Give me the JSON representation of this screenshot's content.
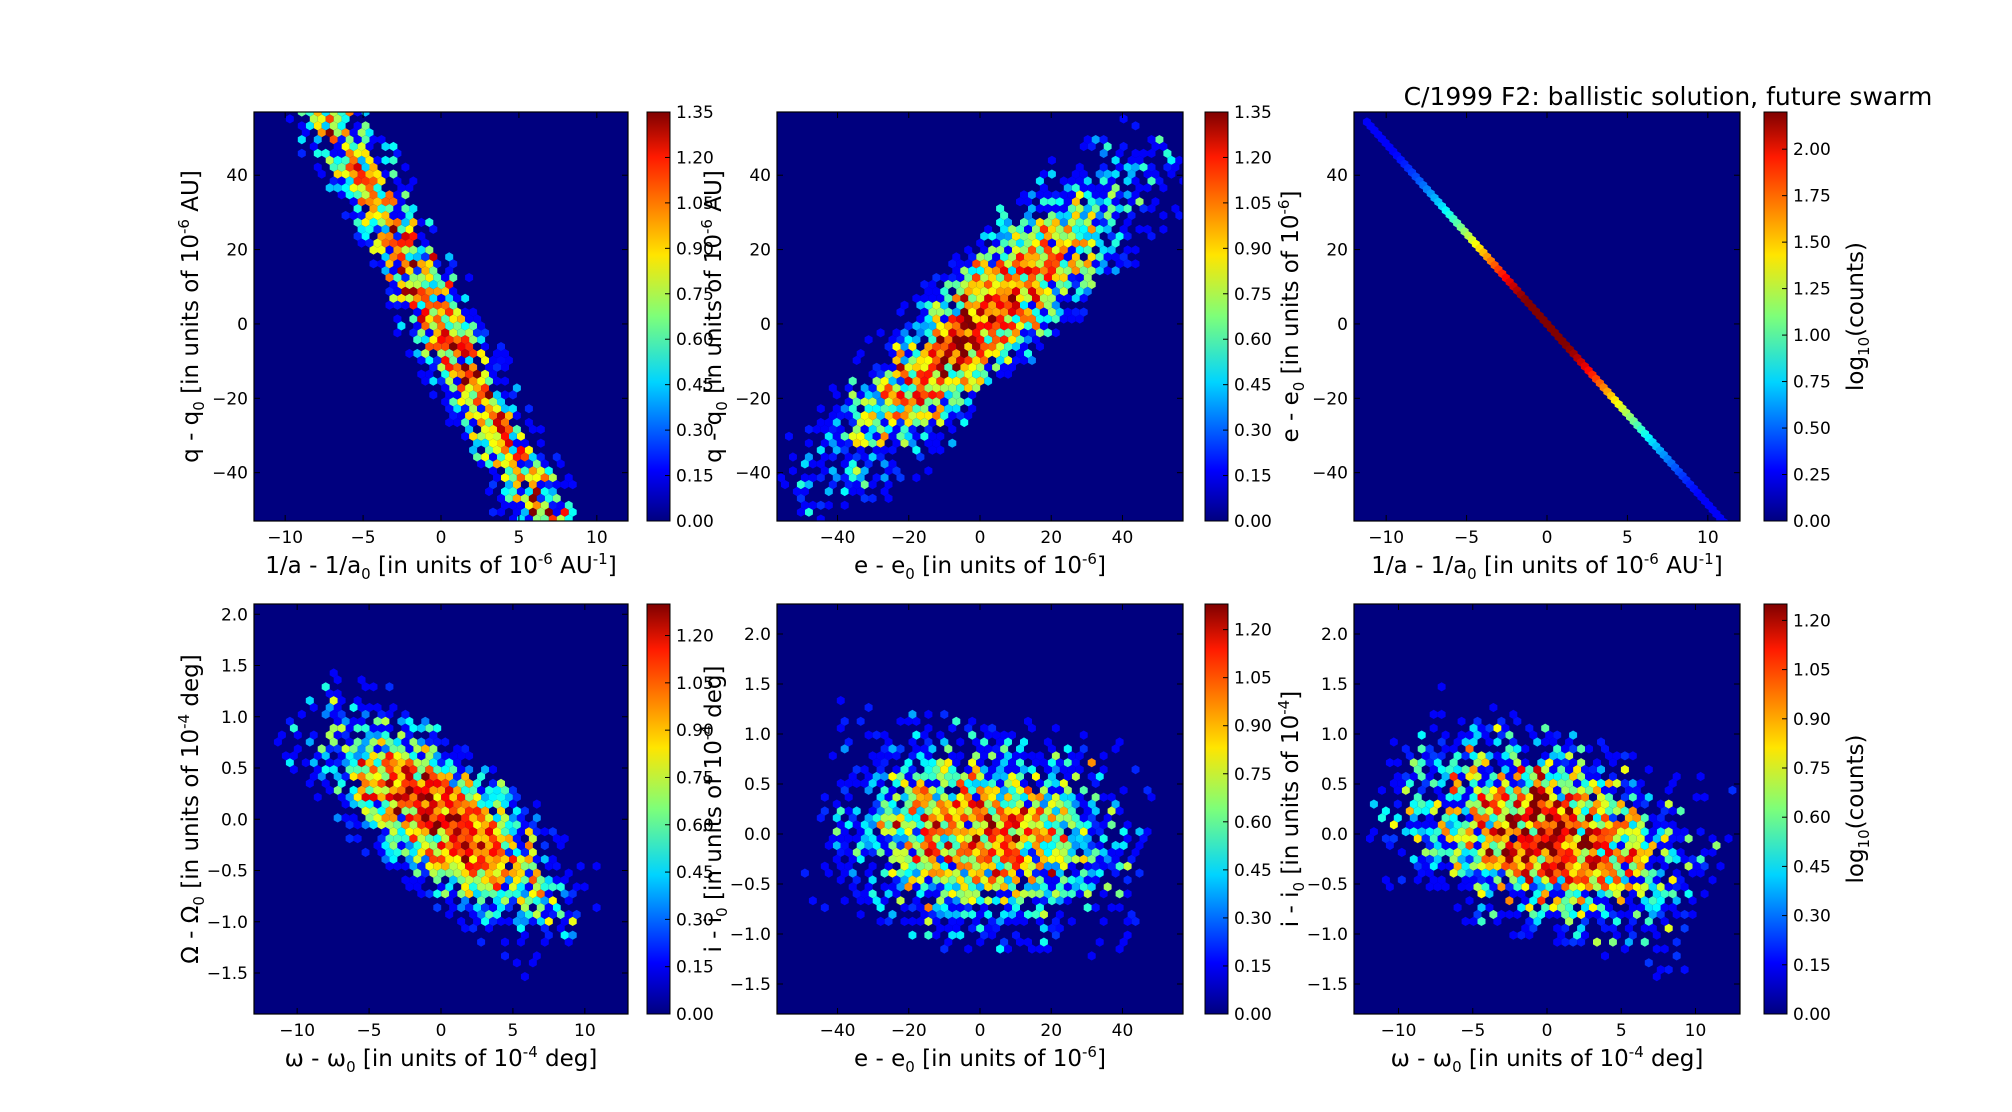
{
  "figure": {
    "title": "C/1999 F2:  ballistic solution, future swarm"
  },
  "chart_data": [
    {
      "type": "heatmap",
      "panel": "top-left",
      "xlabel": "1/a - 1/a_0 [in units of 10^-6 AU^-1]",
      "xlabel_parts": [
        "1/a - 1/a",
        "0",
        " [in units of 10",
        "-6",
        " AU",
        "-1",
        "]"
      ],
      "ylabel": "q - q_0 [in units of 10^-6 AU]",
      "ylabel_parts": [
        "q - q",
        "0",
        " [in units of 10",
        "-6",
        " AU]"
      ],
      "xlim": [
        -12,
        12
      ],
      "ylim": [
        -53,
        57
      ],
      "xticks": [
        -10,
        -5,
        0,
        5,
        10
      ],
      "yticks": [
        -40,
        -20,
        0,
        20,
        40
      ],
      "colorbar": {
        "min": 0.0,
        "max": 1.35,
        "ticks": [
          "0.00",
          "0.15",
          "0.30",
          "0.45",
          "0.60",
          "0.75",
          "0.90",
          "1.05",
          "1.20",
          "1.35"
        ],
        "label_parts": []
      },
      "density": {
        "center": [
          0,
          0
        ],
        "sigma_major": 19,
        "sigma_minor": 4.5,
        "angle_deg": -62.0,
        "peak_log10_counts": 1.35,
        "n_points": 2600,
        "extent_sigma": 2.6
      }
    },
    {
      "type": "heatmap",
      "panel": "top-middle",
      "xlabel": "e - e_0 [in units of 10^-6]",
      "xlabel_parts": [
        "e - e",
        "0",
        " [in units of 10",
        "-6",
        "]"
      ],
      "ylabel": "q - q_0 [in units of 10^-6 AU]",
      "ylabel_parts": [
        "q - q",
        "0",
        " [in units of 10",
        "-6",
        " AU]"
      ],
      "xlim": [
        -57,
        57
      ],
      "ylim": [
        -53,
        57
      ],
      "xticks": [
        -40,
        -20,
        0,
        20,
        40
      ],
      "yticks": [
        -40,
        -20,
        0,
        20,
        40
      ],
      "colorbar": {
        "min": 0.0,
        "max": 1.35,
        "ticks": [
          "0.00",
          "0.15",
          "0.30",
          "0.45",
          "0.60",
          "0.75",
          "0.90",
          "1.05",
          "1.20",
          "1.35"
        ],
        "label_parts": []
      },
      "density": {
        "center": [
          0,
          0
        ],
        "sigma_major": 28,
        "sigma_minor": 7,
        "angle_deg": 45,
        "peak_log10_counts": 1.35,
        "n_points": 2600,
        "extent_sigma": 2.6
      }
    },
    {
      "type": "heatmap",
      "panel": "top-right",
      "xlabel": "1/a - 1/a_0 [in units of 10^-6 AU^-1]",
      "xlabel_parts": [
        "1/a - 1/a",
        "0",
        " [in units of 10",
        "-6",
        " AU",
        "-1",
        "]"
      ],
      "ylabel": "e - e_0 [in units of 10^-6]",
      "ylabel_parts": [
        "e - e",
        "0",
        " [in units of 10",
        "-6",
        "]"
      ],
      "xlim": [
        -12,
        12
      ],
      "ylim": [
        -53,
        57
      ],
      "xticks": [
        -10,
        -5,
        0,
        5,
        10
      ],
      "yticks": [
        -40,
        -20,
        0,
        20,
        40
      ],
      "colorbar": {
        "min": 0.0,
        "max": 2.2,
        "ticks": [
          "0.00",
          "0.25",
          "0.50",
          "0.75",
          "1.00",
          "1.25",
          "1.50",
          "1.75",
          "2.00"
        ],
        "label_parts": [
          "log",
          "10",
          "(counts)"
        ]
      },
      "line": {
        "slope": -4.85,
        "x_min": -11.2,
        "x_max": 11.0,
        "peak_log10_counts": 2.2,
        "sigma_x": 4.2
      }
    },
    {
      "type": "heatmap",
      "panel": "bottom-left",
      "xlabel": "ω - ω_0 [in units of 10^-4 deg]",
      "xlabel_parts": [
        "ω - ω",
        "0",
        " [in units of 10",
        "-4",
        " deg]"
      ],
      "ylabel": "Ω - Ω_0 [in units of 10^-4 deg]",
      "ylabel_parts": [
        "Ω - Ω",
        "0",
        " [in units of 10",
        "-4",
        " deg]"
      ],
      "xlim": [
        -13,
        13
      ],
      "ylim": [
        -1.9,
        2.1
      ],
      "xticks": [
        -10,
        -5,
        0,
        5,
        10
      ],
      "yticks": [
        "-1.5",
        "-1.0",
        "-0.5",
        "0.0",
        "0.5",
        "1.0",
        "1.5",
        "2.0"
      ],
      "colorbar": {
        "min": 0.0,
        "max": 1.3,
        "ticks": [
          "0.00",
          "0.15",
          "0.30",
          "0.45",
          "0.60",
          "0.75",
          "0.90",
          "1.05",
          "1.20"
        ],
        "label_parts": []
      },
      "density": {
        "center": [
          0,
          0
        ],
        "sigma_major": 4.8,
        "sigma_minor": 0.27,
        "angle_deg": -40,
        "peak_log10_counts": 1.28,
        "n_points": 2400,
        "extent_sigma": 2.6
      }
    },
    {
      "type": "heatmap",
      "panel": "bottom-middle",
      "xlabel": "e - e_0 [in units of 10^-6]",
      "xlabel_parts": [
        "e - e",
        "0",
        " [in units of 10",
        "-6",
        "]"
      ],
      "ylabel": "i - i_0 [in units of 10^-4 deg]",
      "ylabel_parts": [
        "i - i",
        "0",
        " [in units of 10",
        "-4",
        " deg]"
      ],
      "xlim": [
        -57,
        57
      ],
      "ylim": [
        -1.8,
        2.3
      ],
      "xticks": [
        -40,
        -20,
        0,
        20,
        40
      ],
      "yticks": [
        "-1.5",
        "-1.0",
        "-0.5",
        "0.0",
        "0.5",
        "1.0",
        "1.5",
        "2.0"
      ],
      "colorbar": {
        "min": 0.0,
        "max": 1.28,
        "ticks": [
          "0.00",
          "0.15",
          "0.30",
          "0.45",
          "0.60",
          "0.75",
          "0.90",
          "1.05",
          "1.20"
        ],
        "label_parts": []
      },
      "density": {
        "center": [
          0,
          0
        ],
        "sigma_major": 18,
        "sigma_minor": 0.45,
        "angle_deg": -8,
        "peak_log10_counts": 1.25,
        "n_points": 2300,
        "extent_sigma": 2.6
      }
    },
    {
      "type": "heatmap",
      "panel": "bottom-right",
      "xlabel": "ω - ω_0 [in units of 10^-4 deg]",
      "xlabel_parts": [
        "ω - ω",
        "0",
        " [in units of 10",
        "-4",
        " deg]"
      ],
      "ylabel": "i - i_0 [in units of 10^-4]",
      "ylabel_parts": [
        "i - i",
        "0",
        " [in units of 10",
        "-4",
        "]"
      ],
      "xlim": [
        -13,
        13
      ],
      "ylim": [
        -1.8,
        2.3
      ],
      "xticks": [
        -10,
        -5,
        0,
        5,
        10
      ],
      "yticks": [
        "-1.5",
        "-1.0",
        "-0.5",
        "0.0",
        "0.5",
        "1.0",
        "1.5",
        "2.0"
      ],
      "colorbar": {
        "min": 0.0,
        "max": 1.25,
        "ticks": [
          "0.00",
          "0.15",
          "0.30",
          "0.45",
          "0.60",
          "0.75",
          "0.90",
          "1.05",
          "1.20"
        ],
        "label_parts": [
          "log",
          "10",
          "(counts)"
        ]
      },
      "density": {
        "center": [
          0,
          0
        ],
        "sigma_major": 4.6,
        "sigma_minor": 0.42,
        "angle_deg": -20,
        "peak_log10_counts": 1.25,
        "n_points": 2400,
        "extent_sigma": 2.6
      }
    }
  ]
}
